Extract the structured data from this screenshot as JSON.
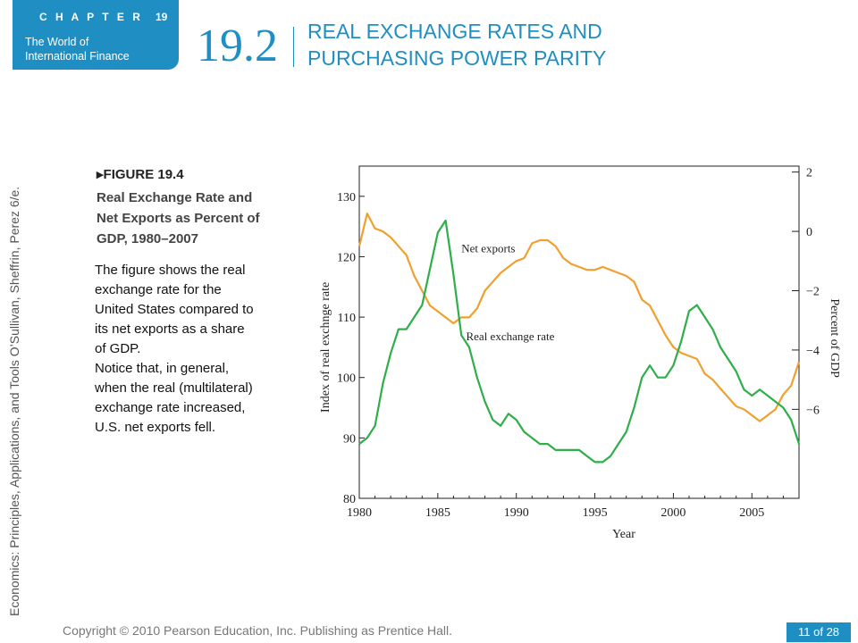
{
  "header": {
    "chapter_label": "C H A P T E R",
    "chapter_number": "19",
    "chapter_subtitle_line1": "The World of",
    "chapter_subtitle_line2": "International Finance",
    "section_number": "19.2",
    "section_title_line1": "REAL EXCHANGE RATES AND",
    "section_title_line2": "PURCHASING POWER PARITY"
  },
  "side_credit": "Economics: Principles, Applications, and Tools    O’Sullivan, Sheffrin, Perez    6/e.",
  "figure": {
    "number": "FIGURE 19.4",
    "title_lines": [
      "Real Exchange Rate and",
      "Net Exports as Percent of",
      "GDP, 1980–2007"
    ],
    "description_lines": [
      "The figure shows the real",
      "exchange rate for the",
      "United States compared to",
      "its net exports as a share",
      "of GDP.",
      "Notice that, in general,",
      "when the real (multilateral)",
      "exchange rate increased,",
      "U.S. net exports fell."
    ]
  },
  "footer": {
    "copyright": "Copyright © 2010 Pearson Education, Inc. Publishing as Prentice Hall.",
    "page_current": "11",
    "page_of": "of",
    "page_total": "28"
  },
  "colors": {
    "accent": "#1f8fc3",
    "net_exports": "#f0a030",
    "real_exchange_rate": "#2fae4a",
    "axis": "#222222"
  },
  "chart_data": {
    "type": "line",
    "title": "",
    "xlabel": "Year",
    "ylabel_left": "Index of real exchnge rate",
    "ylabel_right": "Percent of GDP",
    "xlim": [
      1980,
      2008
    ],
    "ylim_left": [
      80,
      135
    ],
    "ylim_right": [
      -9,
      2.2
    ],
    "x_ticks": [
      1980,
      1985,
      1990,
      1995,
      2000,
      2005
    ],
    "y_ticks_left": [
      80,
      90,
      100,
      110,
      120,
      130
    ],
    "y_ticks_right": [
      2,
      0,
      -2,
      -4,
      -6
    ],
    "y_tick_labels_right": [
      "2",
      "0",
      "−2",
      "−4",
      "−6"
    ],
    "grid": false,
    "series": [
      {
        "name": "Net exports",
        "axis": "right",
        "x": [
          1980,
          1980.5,
          1981,
          1981.5,
          1982,
          1982.5,
          1983,
          1983.5,
          1984,
          1984.5,
          1985,
          1985.5,
          1986,
          1986.5,
          1987,
          1987.5,
          1988,
          1988.5,
          1989,
          1989.5,
          1990,
          1990.5,
          1991,
          1991.5,
          1992,
          1992.5,
          1993,
          1993.5,
          1994,
          1994.5,
          1995,
          1995.5,
          1996,
          1996.5,
          1997,
          1997.5,
          1998,
          1998.5,
          1999,
          1999.5,
          2000,
          2000.5,
          2001,
          2001.5,
          2002,
          2002.5,
          2003,
          2003.5,
          2004,
          2004.5,
          2005,
          2005.5,
          2006,
          2006.5,
          2007,
          2007.5,
          2008
        ],
        "values": [
          -0.5,
          0.6,
          0.1,
          0.0,
          -0.2,
          -0.5,
          -0.8,
          -1.5,
          -2.0,
          -2.5,
          -2.7,
          -2.9,
          -3.1,
          -2.9,
          -2.9,
          -2.6,
          -2.0,
          -1.7,
          -1.4,
          -1.2,
          -1.0,
          -0.9,
          -0.4,
          -0.3,
          -0.3,
          -0.5,
          -0.9,
          -1.1,
          -1.2,
          -1.3,
          -1.3,
          -1.2,
          -1.3,
          -1.4,
          -1.5,
          -1.7,
          -2.3,
          -2.5,
          -3.0,
          -3.5,
          -3.9,
          -4.1,
          -4.2,
          -4.3,
          -4.8,
          -5.0,
          -5.3,
          -5.6,
          -5.9,
          -6.0,
          -6.2,
          -6.4,
          -6.2,
          -6.0,
          -5.5,
          -5.2,
          -4.4
        ]
      },
      {
        "name": "Real exchange rate",
        "axis": "left",
        "x": [
          1980,
          1980.5,
          1981,
          1981.5,
          1982,
          1982.5,
          1983,
          1983.5,
          1984,
          1984.5,
          1985,
          1985.5,
          1986,
          1986.5,
          1987,
          1987.5,
          1988,
          1988.5,
          1989,
          1989.5,
          1990,
          1990.5,
          1991,
          1991.5,
          1992,
          1992.5,
          1993,
          1993.5,
          1994,
          1994.5,
          1995,
          1995.5,
          1996,
          1996.5,
          1997,
          1997.5,
          1998,
          1998.5,
          1999,
          1999.5,
          2000,
          2000.5,
          2001,
          2001.5,
          2002,
          2002.5,
          2003,
          2003.5,
          2004,
          2004.5,
          2005,
          2005.5,
          2006,
          2006.5,
          2007,
          2007.5,
          2008
        ],
        "values": [
          89,
          90,
          92,
          99,
          104,
          108,
          108,
          110,
          112,
          118,
          124,
          126,
          117,
          107,
          105,
          100,
          96,
          93,
          92,
          94,
          93,
          91,
          90,
          89,
          89,
          88,
          88,
          88,
          88,
          87,
          86,
          86,
          87,
          89,
          91,
          95,
          100,
          102,
          100,
          100,
          102,
          106,
          111,
          112,
          110,
          108,
          105,
          103,
          101,
          98,
          97,
          98,
          97,
          96,
          95,
          93,
          89
        ]
      }
    ],
    "annotations": [
      "Net exports",
      "Real exchange rate"
    ]
  }
}
